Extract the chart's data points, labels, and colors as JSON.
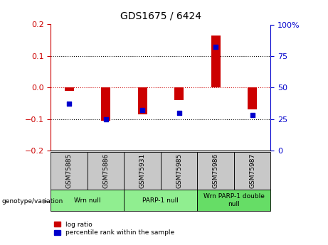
{
  "title": "GDS1675 / 6424",
  "samples": [
    "GSM75885",
    "GSM75886",
    "GSM75931",
    "GSM75985",
    "GSM75986",
    "GSM75987"
  ],
  "log_ratio": [
    -0.01,
    -0.105,
    -0.085,
    -0.04,
    0.165,
    -0.07
  ],
  "percentile_rank": [
    37,
    25,
    32,
    30,
    82,
    28
  ],
  "groups": [
    {
      "label": "Wrn null",
      "start": 0,
      "end": 2,
      "color": "#90EE90"
    },
    {
      "label": "PARP-1 null",
      "start": 2,
      "end": 4,
      "color": "#90EE90"
    },
    {
      "label": "Wrn PARP-1 double\nnull",
      "start": 4,
      "end": 6,
      "color": "#66DD66"
    }
  ],
  "bar_color": "#CC0000",
  "dot_color": "#0000CC",
  "zero_line_color": "#CC0000",
  "ylim_left": [
    -0.2,
    0.2
  ],
  "ylim_right": [
    0,
    100
  ],
  "yticks_left": [
    -0.2,
    -0.1,
    0,
    0.1,
    0.2
  ],
  "yticks_right": [
    0,
    25,
    50,
    75,
    100
  ],
  "ytick_labels_right": [
    "0",
    "25",
    "50",
    "75",
    "100%"
  ],
  "sample_box_color": "#C8C8C8",
  "legend_items": [
    {
      "label": "log ratio",
      "color": "#CC0000"
    },
    {
      "label": "percentile rank within the sample",
      "color": "#0000CC"
    }
  ],
  "genotype_label": "genotype/variation"
}
